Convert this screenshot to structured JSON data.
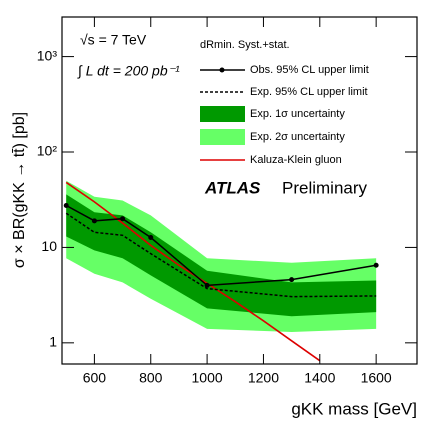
{
  "chart_data": {
    "type": "limit",
    "annotations": {
      "energy": "√s = 7 TeV",
      "lumi": "∫ L dt = 200 pb⁻¹",
      "experiment": "ATLAS",
      "status": "Preliminary",
      "legend_header": "dRmin. Syst.+stat."
    },
    "xlabel": "gKK mass [GeV]",
    "ylabel": "σ × BR(gKK → tt̄) [pb]",
    "x": [
      500,
      600,
      700,
      800,
      1000,
      1300,
      1600
    ],
    "bands": [
      {
        "name": "Exp. 2σ uncertainty",
        "color": "#66ff66",
        "lower": [
          7.7,
          5.3,
          4.3,
          2.9,
          1.4,
          1.3,
          1.4
        ],
        "upper": [
          50,
          34,
          31,
          21.7,
          7.7,
          6.9,
          7.7
        ]
      },
      {
        "name": "Exp. 1σ uncertainty",
        "color": "#009900",
        "lower": [
          13,
          9.3,
          7.7,
          5.1,
          2.3,
          1.9,
          2.1
        ],
        "upper": [
          36,
          23.4,
          21.7,
          14.4,
          5.7,
          4.3,
          4.5
        ]
      }
    ],
    "series": [
      {
        "name": "Obs. 95% CL upper limit",
        "color": "#000000",
        "dashed": false,
        "markers": true,
        "values": [
          27.5,
          19,
          20,
          12.7,
          4.0,
          4.6,
          6.5
        ]
      },
      {
        "name": "Exp. 95% CL upper limit",
        "color": "#000000",
        "dashed": true,
        "markers": false,
        "values": [
          22.8,
          14.4,
          13.4,
          8.6,
          3.7,
          3.05,
          3.1
        ]
      }
    ],
    "theory": {
      "name": "Kaluza-Klein gluon",
      "color": "#dd0000",
      "x": [
        500,
        600,
        700,
        800,
        900,
        1000,
        1100,
        1200,
        1300,
        1400
      ],
      "values": [
        48,
        30,
        18,
        10.5,
        6.5,
        4.2,
        2.7,
        1.7,
        1.05,
        0.65
      ]
    },
    "xlim": [
      485,
      1745
    ],
    "ylim": [
      0.6,
      2600
    ],
    "log_y": true,
    "xticks": [
      600,
      800,
      1000,
      1200,
      1400,
      1600
    ],
    "yticks": [
      1,
      10,
      {
        "value": 100,
        "label": "10²"
      },
      {
        "value": 1000,
        "label": "10³"
      }
    ]
  }
}
